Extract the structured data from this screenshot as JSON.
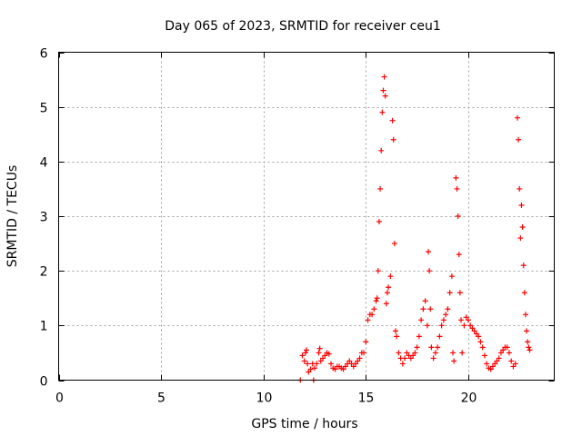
{
  "chart_data": {
    "type": "scatter",
    "title": "Day 065 of 2023, SRMTID for receiver ceu1",
    "xlabel": "GPS time / hours",
    "ylabel": "SRMTID / TECUs",
    "xlim": [
      0,
      24.2
    ],
    "ylim": [
      0,
      6
    ],
    "xticks": [
      0,
      5,
      10,
      15,
      20
    ],
    "yticks": [
      0,
      1,
      2,
      3,
      4,
      5,
      6
    ],
    "grid": true,
    "marker": "+",
    "color": "#ff0000",
    "series": [
      {
        "name": "ceu1",
        "points": [
          [
            11.8,
            0.0
          ],
          [
            11.9,
            0.45
          ],
          [
            12.0,
            0.35
          ],
          [
            12.05,
            0.5
          ],
          [
            12.1,
            0.55
          ],
          [
            12.15,
            0.3
          ],
          [
            12.2,
            0.15
          ],
          [
            12.3,
            0.2
          ],
          [
            12.4,
            0.3
          ],
          [
            12.45,
            0.0
          ],
          [
            12.5,
            0.22
          ],
          [
            12.6,
            0.3
          ],
          [
            12.7,
            0.5
          ],
          [
            12.75,
            0.58
          ],
          [
            12.8,
            0.35
          ],
          [
            12.9,
            0.4
          ],
          [
            13.0,
            0.45
          ],
          [
            13.1,
            0.5
          ],
          [
            13.2,
            0.48
          ],
          [
            13.3,
            0.3
          ],
          [
            13.4,
            0.22
          ],
          [
            13.5,
            0.2
          ],
          [
            13.6,
            0.25
          ],
          [
            13.7,
            0.25
          ],
          [
            13.8,
            0.22
          ],
          [
            13.9,
            0.2
          ],
          [
            14.0,
            0.25
          ],
          [
            14.1,
            0.3
          ],
          [
            14.2,
            0.35
          ],
          [
            14.3,
            0.3
          ],
          [
            14.4,
            0.25
          ],
          [
            14.5,
            0.3
          ],
          [
            14.6,
            0.35
          ],
          [
            14.7,
            0.4
          ],
          [
            14.8,
            0.5
          ],
          [
            14.9,
            0.5
          ],
          [
            15.0,
            0.7
          ],
          [
            15.1,
            1.1
          ],
          [
            15.2,
            1.2
          ],
          [
            15.3,
            1.2
          ],
          [
            15.4,
            1.3
          ],
          [
            15.5,
            1.45
          ],
          [
            15.55,
            1.5
          ],
          [
            15.6,
            2.0
          ],
          [
            15.65,
            2.9
          ],
          [
            15.7,
            3.5
          ],
          [
            15.75,
            4.2
          ],
          [
            15.8,
            4.9
          ],
          [
            15.85,
            5.3
          ],
          [
            15.9,
            5.55
          ],
          [
            15.95,
            5.2
          ],
          [
            16.0,
            1.4
          ],
          [
            16.05,
            1.6
          ],
          [
            16.1,
            1.7
          ],
          [
            16.2,
            1.9
          ],
          [
            16.3,
            4.75
          ],
          [
            16.35,
            4.4
          ],
          [
            16.4,
            2.5
          ],
          [
            16.45,
            0.9
          ],
          [
            16.5,
            0.8
          ],
          [
            16.6,
            0.5
          ],
          [
            16.7,
            0.4
          ],
          [
            16.8,
            0.3
          ],
          [
            16.9,
            0.4
          ],
          [
            17.0,
            0.5
          ],
          [
            17.1,
            0.45
          ],
          [
            17.2,
            0.4
          ],
          [
            17.3,
            0.45
          ],
          [
            17.4,
            0.5
          ],
          [
            17.5,
            0.6
          ],
          [
            17.6,
            0.8
          ],
          [
            17.7,
            1.1
          ],
          [
            17.8,
            1.3
          ],
          [
            17.9,
            1.45
          ],
          [
            18.0,
            1.0
          ],
          [
            18.05,
            2.35
          ],
          [
            18.1,
            2.0
          ],
          [
            18.15,
            1.3
          ],
          [
            18.2,
            0.6
          ],
          [
            18.3,
            0.4
          ],
          [
            18.4,
            0.5
          ],
          [
            18.5,
            0.6
          ],
          [
            18.6,
            0.8
          ],
          [
            18.7,
            1.0
          ],
          [
            18.8,
            1.1
          ],
          [
            18.9,
            1.2
          ],
          [
            19.0,
            1.3
          ],
          [
            19.1,
            1.6
          ],
          [
            19.2,
            1.9
          ],
          [
            19.25,
            0.5
          ],
          [
            19.3,
            0.35
          ],
          [
            19.4,
            3.7
          ],
          [
            19.45,
            3.5
          ],
          [
            19.5,
            3.0
          ],
          [
            19.55,
            2.3
          ],
          [
            19.6,
            1.6
          ],
          [
            19.65,
            1.1
          ],
          [
            19.7,
            0.5
          ],
          [
            19.8,
            1.0
          ],
          [
            19.9,
            1.15
          ],
          [
            20.0,
            1.1
          ],
          [
            20.1,
            1.0
          ],
          [
            20.2,
            0.95
          ],
          [
            20.3,
            0.9
          ],
          [
            20.4,
            0.85
          ],
          [
            20.5,
            0.8
          ],
          [
            20.6,
            0.7
          ],
          [
            20.7,
            0.6
          ],
          [
            20.8,
            0.45
          ],
          [
            20.9,
            0.3
          ],
          [
            21.0,
            0.22
          ],
          [
            21.1,
            0.2
          ],
          [
            21.2,
            0.25
          ],
          [
            21.3,
            0.3
          ],
          [
            21.4,
            0.35
          ],
          [
            21.5,
            0.4
          ],
          [
            21.6,
            0.5
          ],
          [
            21.7,
            0.55
          ],
          [
            21.8,
            0.6
          ],
          [
            21.9,
            0.6
          ],
          [
            22.0,
            0.5
          ],
          [
            22.1,
            0.35
          ],
          [
            22.2,
            0.25
          ],
          [
            22.3,
            0.3
          ],
          [
            22.4,
            4.8
          ],
          [
            22.45,
            4.4
          ],
          [
            22.5,
            3.5
          ],
          [
            22.55,
            2.6
          ],
          [
            22.6,
            3.2
          ],
          [
            22.65,
            2.8
          ],
          [
            22.7,
            2.1
          ],
          [
            22.75,
            1.6
          ],
          [
            22.8,
            1.2
          ],
          [
            22.85,
            0.9
          ],
          [
            22.9,
            0.7
          ],
          [
            22.95,
            0.6
          ],
          [
            23.0,
            0.55
          ]
        ]
      }
    ]
  }
}
